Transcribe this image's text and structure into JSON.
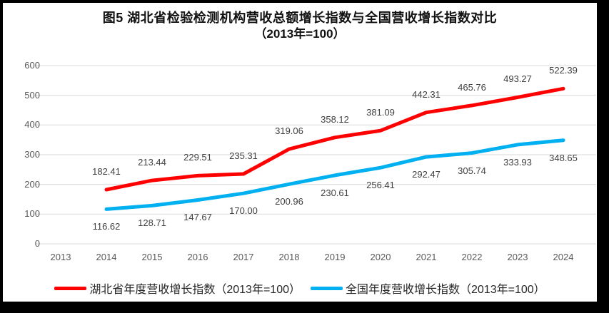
{
  "chart_data": {
    "type": "line",
    "title": "图5 湖北省检验检测机构营收总额增长指数与全国营收增长指数对比",
    "subtitle": "（2013年=100）",
    "categories": [
      "2013",
      "2014",
      "2015",
      "2016",
      "2017",
      "2018",
      "2019",
      "2020",
      "2021",
      "2022",
      "2023",
      "2024"
    ],
    "xlabel": "",
    "ylabel": "",
    "ylim": [
      0,
      600
    ],
    "yticks": [
      0,
      100,
      200,
      300,
      400,
      500,
      600
    ],
    "grid": "horizontal",
    "grid_color": "#d9d9d9",
    "legend_position": "bottom",
    "series": [
      {
        "name": "湖北省年度营收增长指数（2013年=100）",
        "color": "#ff0000",
        "first_category": "2014",
        "values": [
          182.41,
          213.44,
          229.51,
          235.31,
          319.06,
          358.12,
          381.09,
          442.31,
          465.76,
          493.27,
          522.39
        ],
        "value_labels": [
          "182.41",
          "213.44",
          "229.51",
          "235.31",
          "319.06",
          "358.12",
          "381.09",
          "442.31",
          "465.76",
          "493.27",
          "522.39"
        ],
        "label_position": "above"
      },
      {
        "name": "全国年度营收增长指数（2013年=100）",
        "color": "#00b0f0",
        "first_category": "2014",
        "values": [
          116.62,
          128.71,
          147.67,
          170.0,
          200.96,
          230.61,
          256.41,
          292.47,
          305.74,
          333.93,
          348.65
        ],
        "value_labels": [
          "116.62",
          "128.71",
          "147.67",
          "170.00",
          "200.96",
          "230.61",
          "256.41",
          "292.47",
          "305.74",
          "333.93",
          "348.65"
        ],
        "label_position": "below"
      }
    ]
  }
}
